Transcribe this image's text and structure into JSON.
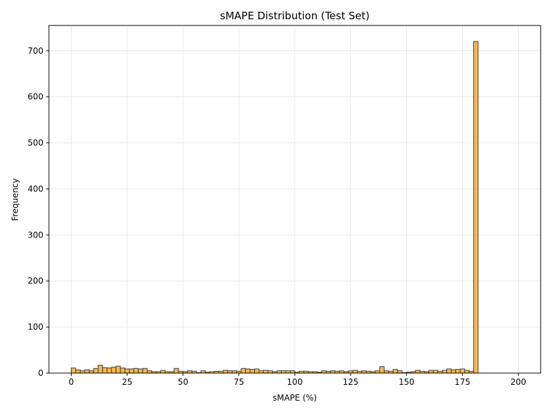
{
  "chart_data": {
    "type": "bar",
    "title": "sMAPE Distribution (Test Set)",
    "xlabel": "sMAPE (%)",
    "ylabel": "Frequency",
    "xlim": [
      -10,
      210
    ],
    "ylim": [
      0,
      755
    ],
    "xticks": [
      0,
      25,
      50,
      75,
      100,
      125,
      150,
      175,
      200
    ],
    "yticks": [
      0,
      100,
      200,
      300,
      400,
      500,
      600,
      700
    ],
    "grid": true,
    "bar_fill": "#f5b84a",
    "bar_edge": "#404040",
    "bin_width": 2,
    "bin_start": 0,
    "values": [
      11,
      7,
      5,
      7,
      5,
      10,
      17,
      12,
      11,
      13,
      15,
      11,
      9,
      9,
      10,
      9,
      10,
      5,
      3,
      3,
      6,
      3,
      3,
      10,
      4,
      3,
      5,
      4,
      1,
      5,
      2,
      3,
      4,
      4,
      6,
      5,
      5,
      4,
      10,
      9,
      8,
      9,
      5,
      6,
      5,
      3,
      5,
      5,
      5,
      5,
      2,
      4,
      4,
      3,
      3,
      2,
      5,
      4,
      5,
      4,
      5,
      3,
      5,
      6,
      4,
      5,
      4,
      3,
      5,
      14,
      5,
      4,
      8,
      5,
      1,
      2,
      3,
      6,
      4,
      3,
      6,
      6,
      4,
      6,
      9,
      7,
      8,
      9,
      6,
      4,
      720
    ]
  }
}
